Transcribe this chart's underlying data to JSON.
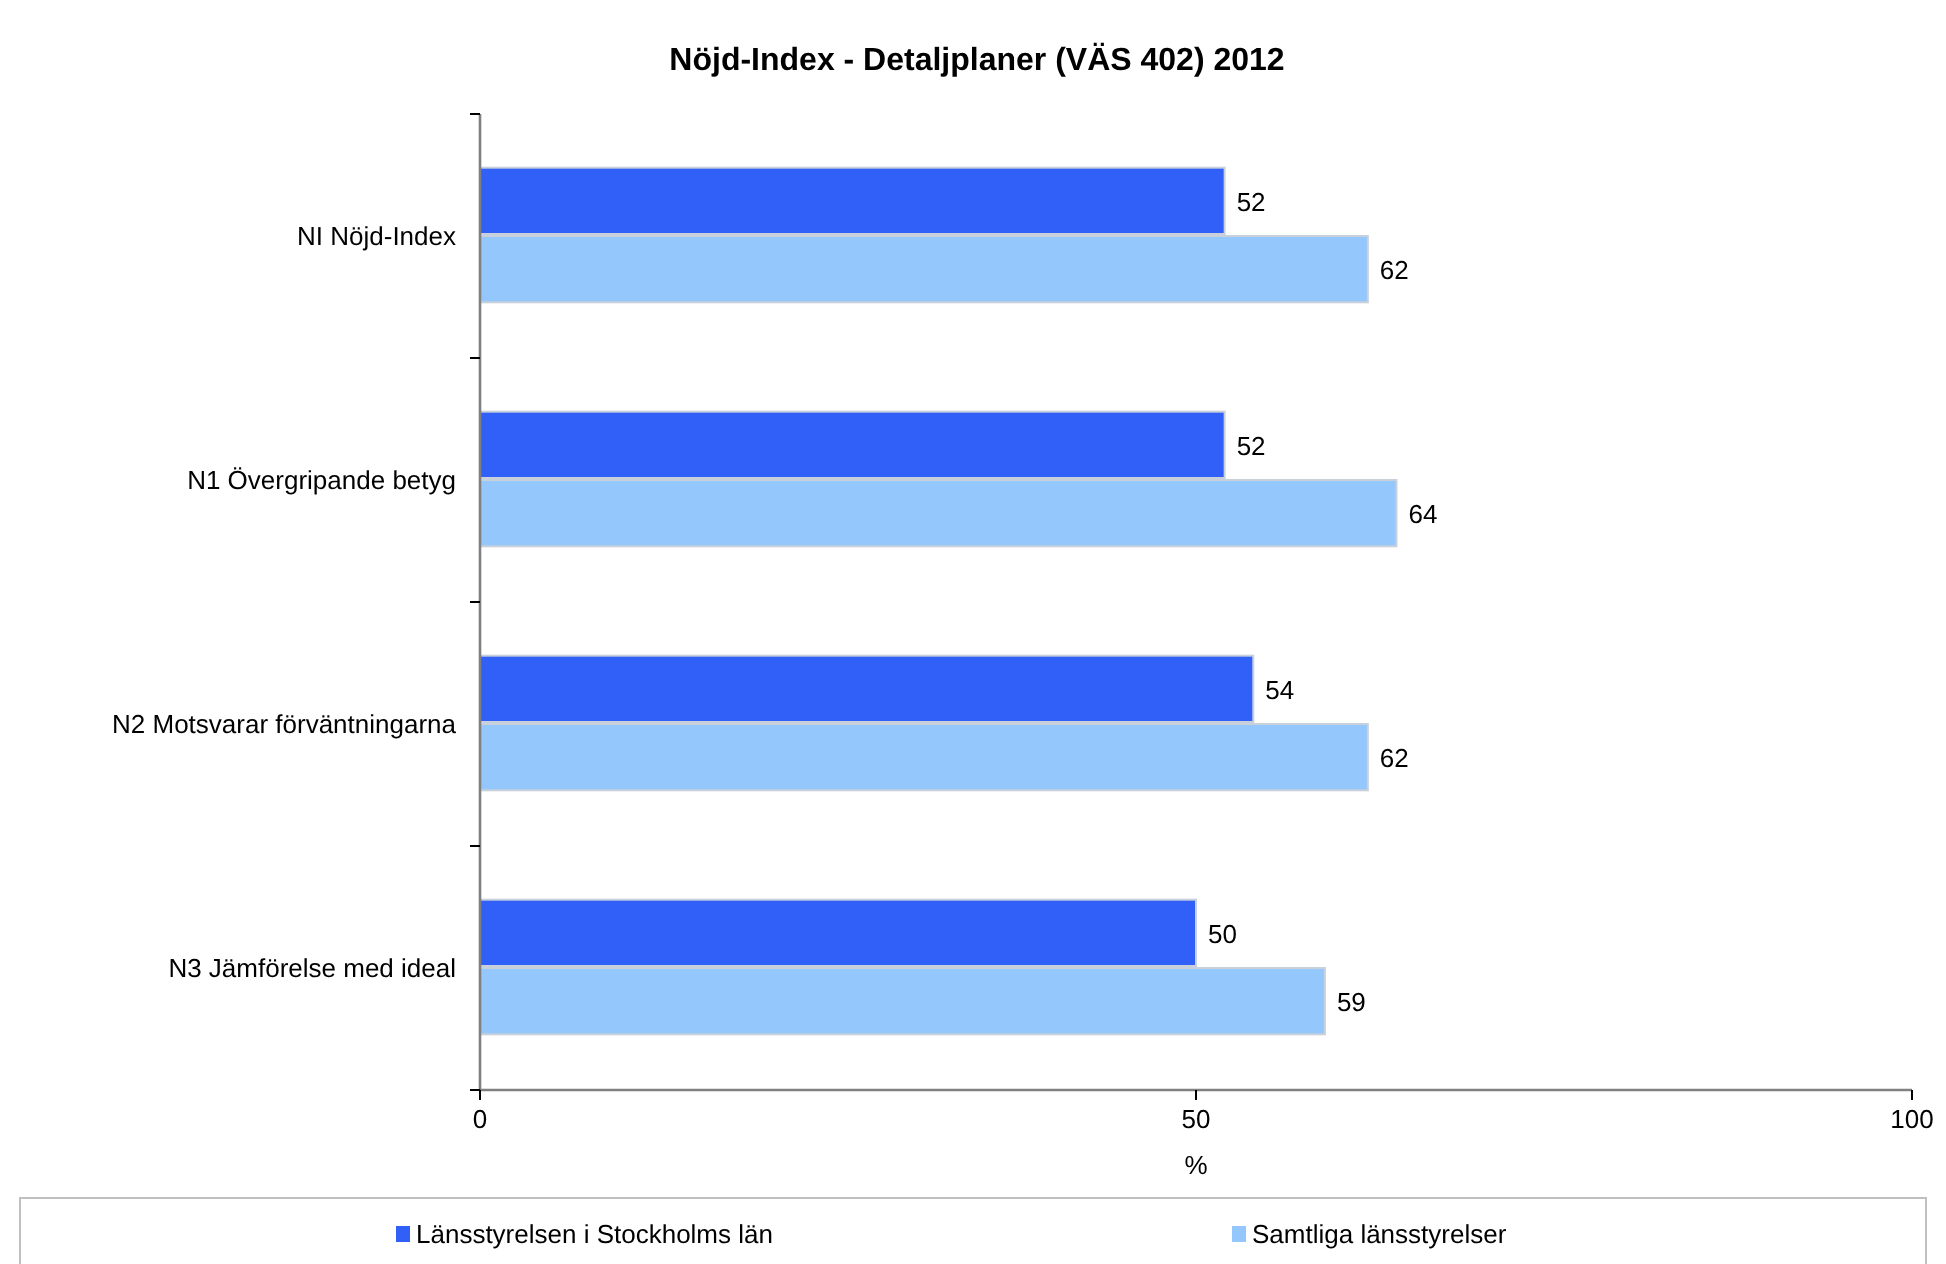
{
  "chart_data": {
    "type": "bar",
    "orientation": "horizontal",
    "title": "Nöjd-Index - Detaljplaner (VÄS 402) 2012",
    "categories": [
      "NI Nöjd-Index",
      "N1 Övergripande betyg",
      "N2 Motsvarar förväntningarna",
      "N3 Jämförelse med ideal"
    ],
    "series": [
      {
        "name": "Länsstyrelsen i Stockholms län",
        "color": "#3060f8",
        "values": [
          52,
          52,
          54,
          50
        ]
      },
      {
        "name": "Samtliga länsstyrelser",
        "color": "#94c8fc",
        "values": [
          62,
          64,
          62,
          59
        ]
      }
    ],
    "xlabel": "%",
    "xlim": [
      0,
      100
    ],
    "xticks": [
      0,
      50,
      100
    ],
    "grid": false,
    "legend": "bottom",
    "data_labels": true
  }
}
